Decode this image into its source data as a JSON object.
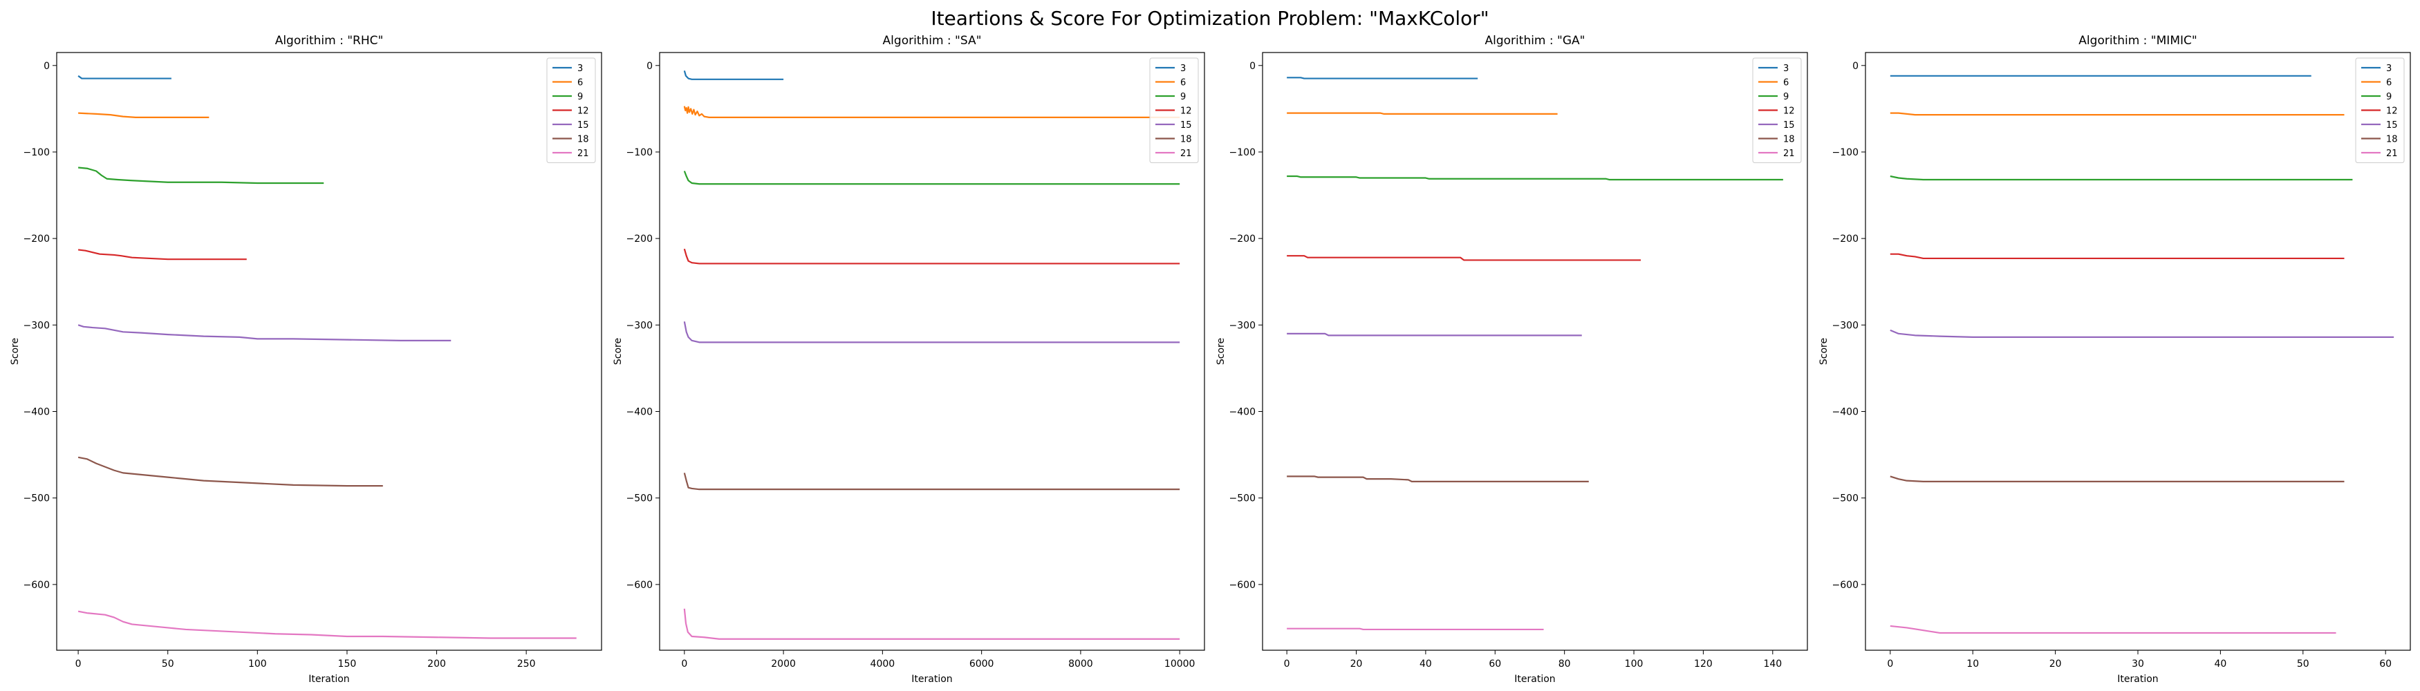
{
  "figure": {
    "suptitle": "Iteartions & Score For Optimization Problem: \"MaxKColor\""
  },
  "chart_data": [
    {
      "type": "line",
      "title": "Algorithim : \"RHC\"",
      "xlabel": "Iteration",
      "ylabel": "Score",
      "xlim": [
        -12,
        292
      ],
      "ylim": [
        -676,
        15
      ],
      "xticks": [
        0,
        50,
        100,
        150,
        200,
        250
      ],
      "yticks": [
        0,
        -100,
        -200,
        -300,
        -400,
        -500,
        -600
      ],
      "legend": "top-right",
      "series": [
        {
          "name": "3",
          "color": "#1f77b4",
          "points": [
            [
              0,
              -12
            ],
            [
              2,
              -15
            ],
            [
              10,
              -15
            ],
            [
              52,
              -15
            ]
          ]
        },
        {
          "name": "6",
          "color": "#ff7f0e",
          "points": [
            [
              0,
              -55
            ],
            [
              10,
              -56
            ],
            [
              18,
              -57
            ],
            [
              25,
              -59
            ],
            [
              32,
              -60
            ],
            [
              73,
              -60
            ]
          ]
        },
        {
          "name": "9",
          "color": "#2ca02c",
          "points": [
            [
              0,
              -118
            ],
            [
              5,
              -119
            ],
            [
              10,
              -122
            ],
            [
              13,
              -127
            ],
            [
              16,
              -131
            ],
            [
              22,
              -132
            ],
            [
              30,
              -133
            ],
            [
              40,
              -134
            ],
            [
              50,
              -135
            ],
            [
              60,
              -135
            ],
            [
              80,
              -135
            ],
            [
              100,
              -136
            ],
            [
              137,
              -136
            ]
          ]
        },
        {
          "name": "12",
          "color": "#d62728",
          "points": [
            [
              0,
              -213
            ],
            [
              4,
              -214
            ],
            [
              8,
              -216
            ],
            [
              12,
              -218
            ],
            [
              20,
              -219
            ],
            [
              24,
              -220
            ],
            [
              30,
              -222
            ],
            [
              40,
              -223
            ],
            [
              50,
              -224
            ],
            [
              60,
              -224
            ],
            [
              94,
              -224
            ]
          ]
        },
        {
          "name": "15",
          "color": "#9467bd",
          "points": [
            [
              0,
              -300
            ],
            [
              3,
              -302
            ],
            [
              8,
              -303
            ],
            [
              15,
              -304
            ],
            [
              20,
              -306
            ],
            [
              25,
              -308
            ],
            [
              35,
              -309
            ],
            [
              50,
              -311
            ],
            [
              70,
              -313
            ],
            [
              90,
              -314
            ],
            [
              100,
              -316
            ],
            [
              120,
              -316
            ],
            [
              150,
              -317
            ],
            [
              180,
              -318
            ],
            [
              208,
              -318
            ]
          ]
        },
        {
          "name": "18",
          "color": "#8c564b",
          "points": [
            [
              0,
              -453
            ],
            [
              5,
              -455
            ],
            [
              10,
              -460
            ],
            [
              15,
              -464
            ],
            [
              20,
              -468
            ],
            [
              25,
              -471
            ],
            [
              30,
              -472
            ],
            [
              40,
              -474
            ],
            [
              50,
              -476
            ],
            [
              60,
              -478
            ],
            [
              70,
              -480
            ],
            [
              80,
              -481
            ],
            [
              100,
              -483
            ],
            [
              120,
              -485
            ],
            [
              150,
              -486
            ],
            [
              170,
              -486
            ]
          ]
        },
        {
          "name": "21",
          "color": "#e377c2",
          "points": [
            [
              0,
              -631
            ],
            [
              5,
              -633
            ],
            [
              15,
              -635
            ],
            [
              20,
              -638
            ],
            [
              25,
              -643
            ],
            [
              30,
              -646
            ],
            [
              40,
              -648
            ],
            [
              50,
              -650
            ],
            [
              60,
              -652
            ],
            [
              70,
              -653
            ],
            [
              90,
              -655
            ],
            [
              110,
              -657
            ],
            [
              130,
              -658
            ],
            [
              150,
              -660
            ],
            [
              170,
              -660
            ],
            [
              200,
              -661
            ],
            [
              230,
              -662
            ],
            [
              260,
              -662
            ],
            [
              278,
              -662
            ]
          ]
        }
      ]
    },
    {
      "type": "line",
      "title": "Algorithim : \"SA\"",
      "xlabel": "Iteration",
      "ylabel": "Score",
      "xlim": [
        -500,
        10500
      ],
      "ylim": [
        -676,
        15
      ],
      "xticks": [
        0,
        2000,
        4000,
        6000,
        8000,
        10000
      ],
      "yticks": [
        0,
        -100,
        -200,
        -300,
        -400,
        -500,
        -600
      ],
      "legend": "top-right",
      "series": [
        {
          "name": "3",
          "color": "#1f77b4",
          "points": [
            [
              0,
              -6
            ],
            [
              30,
              -12
            ],
            [
              80,
              -15
            ],
            [
              150,
              -16
            ],
            [
              500,
              -16
            ],
            [
              2000,
              -16
            ]
          ]
        },
        {
          "name": "6",
          "color": "#ff7f0e",
          "points": [
            [
              0,
              -47
            ],
            [
              20,
              -52
            ],
            [
              40,
              -49
            ],
            [
              60,
              -55
            ],
            [
              80,
              -48
            ],
            [
              100,
              -54
            ],
            [
              130,
              -50
            ],
            [
              160,
              -56
            ],
            [
              190,
              -51
            ],
            [
              220,
              -57
            ],
            [
              260,
              -53
            ],
            [
              300,
              -58
            ],
            [
              350,
              -56
            ],
            [
              400,
              -59
            ],
            [
              500,
              -60
            ],
            [
              700,
              -60
            ],
            [
              1000,
              -60
            ],
            [
              10000,
              -60
            ]
          ]
        },
        {
          "name": "9",
          "color": "#2ca02c",
          "points": [
            [
              0,
              -122
            ],
            [
              40,
              -128
            ],
            [
              80,
              -133
            ],
            [
              150,
              -136
            ],
            [
              300,
              -137
            ],
            [
              1000,
              -137
            ],
            [
              5000,
              -137
            ],
            [
              10000,
              -137
            ]
          ]
        },
        {
          "name": "12",
          "color": "#d62728",
          "points": [
            [
              0,
              -212
            ],
            [
              40,
              -220
            ],
            [
              80,
              -226
            ],
            [
              150,
              -228
            ],
            [
              300,
              -229
            ],
            [
              1000,
              -229
            ],
            [
              5000,
              -229
            ],
            [
              10000,
              -229
            ]
          ]
        },
        {
          "name": "15",
          "color": "#9467bd",
          "points": [
            [
              0,
              -296
            ],
            [
              40,
              -308
            ],
            [
              80,
              -314
            ],
            [
              150,
              -318
            ],
            [
              300,
              -320
            ],
            [
              1000,
              -320
            ],
            [
              5000,
              -320
            ],
            [
              10000,
              -320
            ]
          ]
        },
        {
          "name": "18",
          "color": "#8c564b",
          "points": [
            [
              0,
              -471
            ],
            [
              40,
              -480
            ],
            [
              80,
              -488
            ],
            [
              150,
              -489
            ],
            [
              300,
              -490
            ],
            [
              1000,
              -490
            ],
            [
              5000,
              -490
            ],
            [
              10000,
              -490
            ]
          ]
        },
        {
          "name": "21",
          "color": "#e377c2",
          "points": [
            [
              0,
              -628
            ],
            [
              30,
              -645
            ],
            [
              70,
              -655
            ],
            [
              150,
              -660
            ],
            [
              400,
              -661
            ],
            [
              700,
              -663
            ],
            [
              1000,
              -663
            ],
            [
              5000,
              -663
            ],
            [
              10000,
              -663
            ]
          ]
        }
      ]
    },
    {
      "type": "line",
      "title": "Algorithim : \"GA\"",
      "xlabel": "Iteration",
      "ylabel": "Score",
      "xlim": [
        -7,
        150
      ],
      "ylim": [
        -676,
        15
      ],
      "xticks": [
        0,
        20,
        40,
        60,
        80,
        100,
        120,
        140
      ],
      "yticks": [
        0,
        -100,
        -200,
        -300,
        -400,
        -500,
        -600
      ],
      "legend": "top-right",
      "series": [
        {
          "name": "3",
          "color": "#1f77b4",
          "points": [
            [
              0,
              -14
            ],
            [
              4,
              -14
            ],
            [
              5,
              -15
            ],
            [
              55,
              -15
            ]
          ]
        },
        {
          "name": "6",
          "color": "#ff7f0e",
          "points": [
            [
              0,
              -55
            ],
            [
              27,
              -55
            ],
            [
              28,
              -56
            ],
            [
              78,
              -56
            ]
          ]
        },
        {
          "name": "9",
          "color": "#2ca02c",
          "points": [
            [
              0,
              -128
            ],
            [
              3,
              -128
            ],
            [
              4,
              -129
            ],
            [
              20,
              -129
            ],
            [
              21,
              -130
            ],
            [
              40,
              -130
            ],
            [
              41,
              -131
            ],
            [
              92,
              -131
            ],
            [
              93,
              -132
            ],
            [
              143,
              -132
            ]
          ]
        },
        {
          "name": "12",
          "color": "#d62728",
          "points": [
            [
              0,
              -220
            ],
            [
              5,
              -220
            ],
            [
              6,
              -222
            ],
            [
              50,
              -222
            ],
            [
              51,
              -225
            ],
            [
              102,
              -225
            ]
          ]
        },
        {
          "name": "15",
          "color": "#9467bd",
          "points": [
            [
              0,
              -310
            ],
            [
              11,
              -310
            ],
            [
              12,
              -312
            ],
            [
              85,
              -312
            ]
          ]
        },
        {
          "name": "18",
          "color": "#8c564b",
          "points": [
            [
              0,
              -475
            ],
            [
              8,
              -475
            ],
            [
              9,
              -476
            ],
            [
              22,
              -476
            ],
            [
              23,
              -478
            ],
            [
              30,
              -478
            ],
            [
              35,
              -479
            ],
            [
              36,
              -481
            ],
            [
              87,
              -481
            ]
          ]
        },
        {
          "name": "21",
          "color": "#e377c2",
          "points": [
            [
              0,
              -651
            ],
            [
              21,
              -651
            ],
            [
              22,
              -652
            ],
            [
              74,
              -652
            ]
          ]
        }
      ]
    },
    {
      "type": "line",
      "title": "Algorithim : \"MIMIC\"",
      "xlabel": "Iteration",
      "ylabel": "Score",
      "xlim": [
        -3,
        63
      ],
      "ylim": [
        -676,
        15
      ],
      "xticks": [
        0,
        10,
        20,
        30,
        40,
        50,
        60
      ],
      "yticks": [
        0,
        -100,
        -200,
        -300,
        -400,
        -500,
        -600
      ],
      "legend": "top-right",
      "series": [
        {
          "name": "3",
          "color": "#1f77b4",
          "points": [
            [
              0,
              -12
            ],
            [
              51,
              -12
            ]
          ]
        },
        {
          "name": "6",
          "color": "#ff7f0e",
          "points": [
            [
              0,
              -55
            ],
            [
              1,
              -55
            ],
            [
              2,
              -56
            ],
            [
              3,
              -57
            ],
            [
              55,
              -57
            ]
          ]
        },
        {
          "name": "9",
          "color": "#2ca02c",
          "points": [
            [
              0,
              -128
            ],
            [
              1,
              -130
            ],
            [
              2,
              -131
            ],
            [
              4,
              -132
            ],
            [
              56,
              -132
            ]
          ]
        },
        {
          "name": "12",
          "color": "#d62728",
          "points": [
            [
              0,
              -218
            ],
            [
              1,
              -218
            ],
            [
              2,
              -220
            ],
            [
              3,
              -221
            ],
            [
              4,
              -223
            ],
            [
              55,
              -223
            ]
          ]
        },
        {
          "name": "15",
          "color": "#9467bd",
          "points": [
            [
              0,
              -306
            ],
            [
              1,
              -310
            ],
            [
              3,
              -312
            ],
            [
              6,
              -313
            ],
            [
              10,
              -314
            ],
            [
              61,
              -314
            ]
          ]
        },
        {
          "name": "18",
          "color": "#8c564b",
          "points": [
            [
              0,
              -475
            ],
            [
              1,
              -478
            ],
            [
              2,
              -480
            ],
            [
              4,
              -481
            ],
            [
              55,
              -481
            ]
          ]
        },
        {
          "name": "21",
          "color": "#e377c2",
          "points": [
            [
              0,
              -648
            ],
            [
              2,
              -650
            ],
            [
              4,
              -653
            ],
            [
              6,
              -656
            ],
            [
              54,
              -656
            ]
          ]
        }
      ]
    }
  ]
}
